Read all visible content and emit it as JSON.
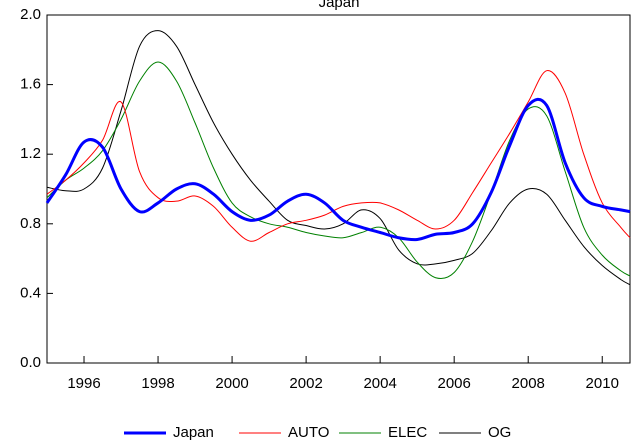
{
  "chart_data": {
    "type": "line",
    "title": "Japan",
    "x": [
      1995,
      1995.5,
      1996,
      1996.5,
      1997,
      1997.5,
      1998,
      1998.5,
      1999,
      1999.5,
      2000,
      2000.5,
      2001,
      2001.5,
      2002,
      2002.5,
      2003,
      2003.5,
      2004,
      2004.5,
      2005,
      2005.5,
      2006,
      2006.5,
      2007,
      2007.5,
      2008,
      2008.5,
      2009,
      2009.5,
      2010,
      2010.5,
      2010.75
    ],
    "series": [
      {
        "name": "Japan",
        "color": "#0000ff",
        "values": [
          0.92,
          1.08,
          1.27,
          1.24,
          1.0,
          0.87,
          0.92,
          1.0,
          1.03,
          0.97,
          0.87,
          0.82,
          0.85,
          0.93,
          0.97,
          0.92,
          0.82,
          0.78,
          0.75,
          0.72,
          0.71,
          0.74,
          0.75,
          0.8,
          0.98,
          1.25,
          1.48,
          1.48,
          1.15,
          0.95,
          0.9,
          0.88,
          0.87
        ]
      },
      {
        "name": "AUTO",
        "color": "#ff0000",
        "values": [
          0.97,
          1.05,
          1.15,
          1.28,
          1.5,
          1.1,
          0.95,
          0.93,
          0.96,
          0.9,
          0.78,
          0.7,
          0.75,
          0.8,
          0.82,
          0.85,
          0.9,
          0.92,
          0.92,
          0.88,
          0.82,
          0.77,
          0.82,
          0.98,
          1.15,
          1.32,
          1.5,
          1.68,
          1.55,
          1.2,
          0.92,
          0.78,
          0.72
        ]
      },
      {
        "name": "ELEC",
        "color": "#008000",
        "values": [
          0.95,
          1.05,
          1.12,
          1.22,
          1.4,
          1.62,
          1.73,
          1.62,
          1.38,
          1.12,
          0.92,
          0.84,
          0.8,
          0.78,
          0.75,
          0.73,
          0.72,
          0.75,
          0.78,
          0.72,
          0.58,
          0.49,
          0.52,
          0.7,
          0.98,
          1.28,
          1.46,
          1.42,
          1.1,
          0.78,
          0.62,
          0.53,
          0.5
        ]
      },
      {
        "name": "OG",
        "color": "#000000",
        "values": [
          1.01,
          0.99,
          1.0,
          1.12,
          1.45,
          1.82,
          1.91,
          1.82,
          1.6,
          1.38,
          1.2,
          1.05,
          0.93,
          0.82,
          0.79,
          0.77,
          0.8,
          0.88,
          0.83,
          0.65,
          0.57,
          0.57,
          0.59,
          0.63,
          0.76,
          0.92,
          1.0,
          0.97,
          0.82,
          0.67,
          0.56,
          0.48,
          0.45
        ]
      }
    ],
    "xlim": [
      1995,
      2010.75
    ],
    "xticks": [
      1996,
      1998,
      2000,
      2002,
      2004,
      2006,
      2008,
      2010
    ],
    "ylim": [
      0,
      2
    ],
    "yticks": [
      {
        "value": 0,
        "label": "0.0"
      },
      {
        "value": 0.4,
        "label": "0.4"
      },
      {
        "value": 0.8,
        "label": "0.8"
      },
      {
        "value": 1.2,
        "label": "1.2"
      },
      {
        "value": 1.6,
        "label": "1.6"
      },
      {
        "value": 2,
        "label": "2.0"
      }
    ],
    "legend": "bottom"
  }
}
